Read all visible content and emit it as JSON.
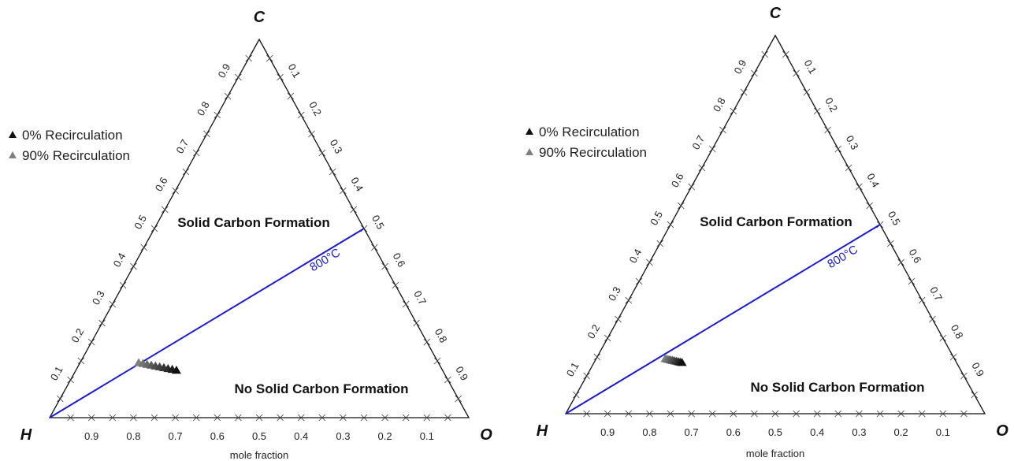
{
  "chart_data": [
    {
      "type": "ternary",
      "vertices": {
        "top": "C",
        "left": "H",
        "right": "O"
      },
      "xlabel": "mole fraction",
      "left_axis_ticks": [
        "0.1",
        "0.2",
        "0.3",
        "0.4",
        "0.5",
        "0.6",
        "0.7",
        "0.8",
        "0.9"
      ],
      "right_axis_ticks": [
        "0.1",
        "0.2",
        "0.3",
        "0.4",
        "0.5",
        "0.6",
        "0.7",
        "0.8",
        "0.9"
      ],
      "bottom_axis_ticks": [
        "0.9",
        "0.8",
        "0.7",
        "0.6",
        "0.5",
        "0.4",
        "0.3",
        "0.2",
        "0.1"
      ],
      "legend": [
        {
          "label": "0% Recirculation",
          "color": "#111111"
        },
        {
          "label": "90% Recirculation",
          "color": "#808080"
        }
      ],
      "regions": [
        "Solid Carbon Formation",
        "No Solid Carbon Formation"
      ],
      "isotherm": {
        "label": "800°C",
        "color": "#1a1ad6",
        "from": {
          "C": 0,
          "H": 1,
          "O": 0
        },
        "to": {
          "C": 0.5,
          "H": 0,
          "O": 0.5
        }
      },
      "series": [
        {
          "name": "0% Recirculation",
          "points": [
            {
              "C": 0.125,
              "H": 0.635,
              "O": 0.24
            }
          ]
        },
        {
          "name": "90% Recirculation",
          "points": [
            {
              "C": 0.145,
              "H": 0.715,
              "O": 0.14
            }
          ]
        }
      ]
    },
    {
      "type": "ternary",
      "vertices": {
        "top": "C",
        "left": "H",
        "right": "O"
      },
      "xlabel": "mole fraction",
      "left_axis_ticks": [
        "0.1",
        "0.2",
        "0.3",
        "0.4",
        "0.5",
        "0.6",
        "0.7",
        "0.8",
        "0.9"
      ],
      "right_axis_ticks": [
        "0.1",
        "0.2",
        "0.3",
        "0.4",
        "0.5",
        "0.6",
        "0.7",
        "0.8",
        "0.9"
      ],
      "bottom_axis_ticks": [
        "0.9",
        "0.8",
        "0.7",
        "0.6",
        "0.5",
        "0.4",
        "0.3",
        "0.2",
        "0.1"
      ],
      "legend": [
        {
          "label": "0% Recirculation",
          "color": "#111111"
        },
        {
          "label": "90% Recirculation",
          "color": "#808080"
        }
      ],
      "regions": [
        "Solid Carbon Formation",
        "No Solid Carbon Formation"
      ],
      "isotherm": {
        "label": "800°C",
        "color": "#1a1ad6",
        "from": {
          "C": 0,
          "H": 1,
          "O": 0
        },
        "to": {
          "C": 0.5,
          "H": 0,
          "O": 0.5
        }
      },
      "series": [
        {
          "name": "0% Recirculation",
          "points": [
            {
              "C": 0.135,
              "H": 0.655,
              "O": 0.21
            }
          ]
        },
        {
          "name": "90% Recirculation",
          "points": [
            {
              "C": 0.145,
              "H": 0.69,
              "O": 0.165
            }
          ]
        }
      ]
    }
  ]
}
